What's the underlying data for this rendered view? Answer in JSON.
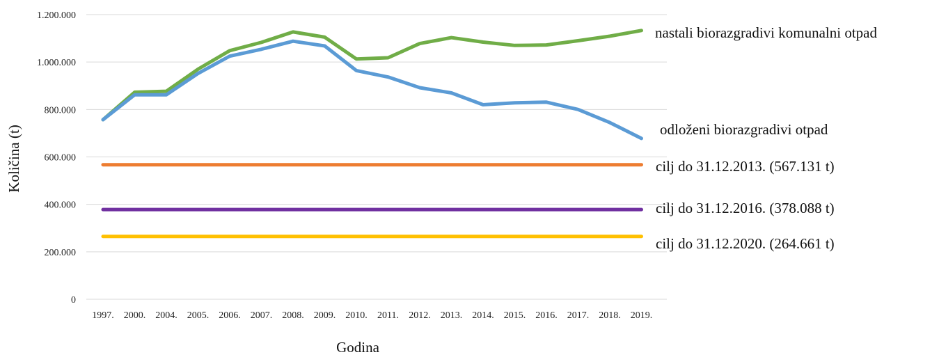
{
  "chart_data": {
    "type": "line",
    "title": "",
    "xlabel": "Godina",
    "ylabel": "Količina (t)",
    "ylim": [
      0,
      1200000
    ],
    "yticks": [
      0,
      200000,
      400000,
      600000,
      800000,
      1000000,
      1200000
    ],
    "ytick_labels": [
      "0",
      "200.000",
      "400.000",
      "600.000",
      "800.000",
      "1.000.000",
      "1.200.000"
    ],
    "grid": "horizontal",
    "legend": "labels at right end of lines",
    "categories": [
      "1997.",
      "2000.",
      "2004.",
      "2005.",
      "2006.",
      "2007.",
      "2008.",
      "2009.",
      "2010.",
      "2011.",
      "2012.",
      "2013.",
      "2014.",
      "2015.",
      "2016.",
      "2017.",
      "2018.",
      "2019."
    ],
    "series": [
      {
        "name": "nastali biorazgradivi komunalni otpad",
        "color": "#70ad47",
        "values": [
          757000,
          873000,
          877000,
          970000,
          1048000,
          1083000,
          1127000,
          1105000,
          1013000,
          1018000,
          1078000,
          1103000,
          1084000,
          1070000,
          1072000,
          1090000,
          1109000,
          1133000
        ]
      },
      {
        "name": "odloženi biorazgradivi otpad",
        "color": "#5b9bd5",
        "values": [
          757000,
          862000,
          862000,
          952000,
          1025000,
          1054000,
          1088000,
          1068000,
          964000,
          937000,
          892000,
          870000,
          820000,
          828000,
          831000,
          800000,
          745000,
          678000
        ]
      },
      {
        "name": "cilj do 31.12.2013. (567.131 t)",
        "color": "#ed7d31",
        "values": [
          567131,
          567131,
          567131,
          567131,
          567131,
          567131,
          567131,
          567131,
          567131,
          567131,
          567131,
          567131,
          567131,
          567131,
          567131,
          567131,
          567131,
          567131
        ]
      },
      {
        "name": "cilj do 31.12.2016. (378.088 t)",
        "color": "#7030a0",
        "values": [
          378088,
          378088,
          378088,
          378088,
          378088,
          378088,
          378088,
          378088,
          378088,
          378088,
          378088,
          378088,
          378088,
          378088,
          378088,
          378088,
          378088,
          378088
        ]
      },
      {
        "name": "cilj do 31.12.2020. (264.661 t)",
        "color": "#ffc000",
        "values": [
          264661,
          264661,
          264661,
          264661,
          264661,
          264661,
          264661,
          264661,
          264661,
          264661,
          264661,
          264661,
          264661,
          264661,
          264661,
          264661,
          264661,
          264661
        ]
      }
    ]
  }
}
